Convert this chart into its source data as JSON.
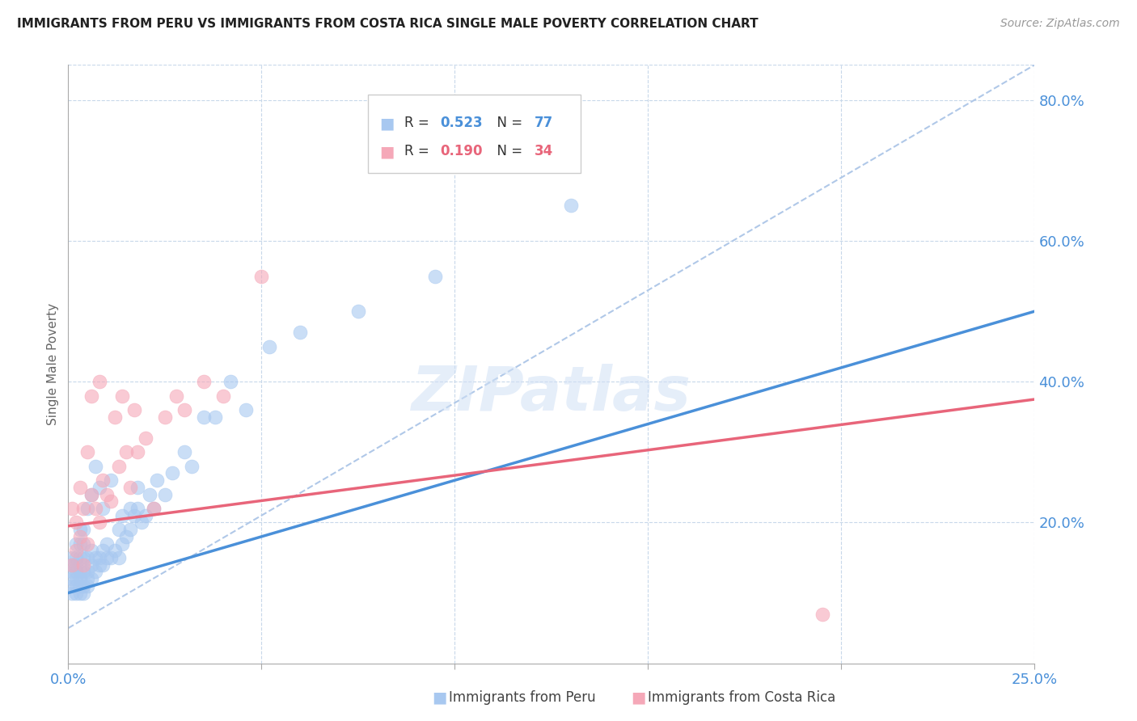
{
  "title": "IMMIGRANTS FROM PERU VS IMMIGRANTS FROM COSTA RICA SINGLE MALE POVERTY CORRELATION CHART",
  "source": "Source: ZipAtlas.com",
  "ylabel": "Single Male Poverty",
  "xlim": [
    0.0,
    0.25
  ],
  "ylim": [
    0.0,
    0.85
  ],
  "right_yticks": [
    0.2,
    0.4,
    0.6,
    0.8
  ],
  "right_yticklabels": [
    "20.0%",
    "40.0%",
    "60.0%",
    "80.0%"
  ],
  "xticks": [
    0.0,
    0.05,
    0.1,
    0.15,
    0.2,
    0.25
  ],
  "R_peru": 0.523,
  "N_peru": 77,
  "R_costarica": 0.19,
  "N_costarica": 34,
  "peru_scatter_color": "#a8c8f0",
  "costarica_scatter_color": "#f5a8b8",
  "peru_line_color": "#4a90d9",
  "costarica_line_color": "#e8657a",
  "reference_line_color": "#b0c8e8",
  "watermark": "ZIPatlas",
  "peru_line_x0": 0.0,
  "peru_line_y0": 0.1,
  "peru_line_x1": 0.25,
  "peru_line_y1": 0.5,
  "cr_line_x0": 0.0,
  "cr_line_y0": 0.195,
  "cr_line_x1": 0.25,
  "cr_line_y1": 0.375,
  "ref_line_x0": 0.0,
  "ref_line_y0": 0.05,
  "ref_line_x1": 0.25,
  "ref_line_y1": 0.85,
  "peru_x": [
    0.001,
    0.001,
    0.001,
    0.001,
    0.001,
    0.001,
    0.002,
    0.002,
    0.002,
    0.002,
    0.002,
    0.002,
    0.002,
    0.003,
    0.003,
    0.003,
    0.003,
    0.003,
    0.003,
    0.003,
    0.004,
    0.004,
    0.004,
    0.004,
    0.004,
    0.004,
    0.005,
    0.005,
    0.005,
    0.005,
    0.005,
    0.006,
    0.006,
    0.006,
    0.006,
    0.007,
    0.007,
    0.007,
    0.008,
    0.008,
    0.008,
    0.009,
    0.009,
    0.009,
    0.01,
    0.01,
    0.011,
    0.011,
    0.012,
    0.013,
    0.013,
    0.014,
    0.014,
    0.015,
    0.016,
    0.016,
    0.017,
    0.018,
    0.018,
    0.019,
    0.02,
    0.021,
    0.022,
    0.023,
    0.025,
    0.027,
    0.03,
    0.032,
    0.035,
    0.038,
    0.042,
    0.046,
    0.052,
    0.06,
    0.075,
    0.095,
    0.13
  ],
  "peru_y": [
    0.1,
    0.11,
    0.12,
    0.13,
    0.14,
    0.15,
    0.1,
    0.11,
    0.12,
    0.13,
    0.14,
    0.15,
    0.17,
    0.1,
    0.11,
    0.12,
    0.13,
    0.15,
    0.17,
    0.19,
    0.1,
    0.11,
    0.13,
    0.15,
    0.17,
    0.19,
    0.11,
    0.12,
    0.13,
    0.15,
    0.22,
    0.12,
    0.14,
    0.16,
    0.24,
    0.13,
    0.15,
    0.28,
    0.14,
    0.15,
    0.25,
    0.14,
    0.16,
    0.22,
    0.15,
    0.17,
    0.15,
    0.26,
    0.16,
    0.15,
    0.19,
    0.17,
    0.21,
    0.18,
    0.19,
    0.22,
    0.21,
    0.22,
    0.25,
    0.2,
    0.21,
    0.24,
    0.22,
    0.26,
    0.24,
    0.27,
    0.3,
    0.28,
    0.35,
    0.35,
    0.4,
    0.36,
    0.45,
    0.47,
    0.5,
    0.55,
    0.65
  ],
  "costarica_x": [
    0.001,
    0.001,
    0.002,
    0.002,
    0.003,
    0.003,
    0.004,
    0.004,
    0.005,
    0.005,
    0.006,
    0.006,
    0.007,
    0.008,
    0.008,
    0.009,
    0.01,
    0.011,
    0.012,
    0.013,
    0.014,
    0.015,
    0.016,
    0.017,
    0.018,
    0.02,
    0.022,
    0.025,
    0.028,
    0.03,
    0.035,
    0.04,
    0.05,
    0.195
  ],
  "costarica_y": [
    0.14,
    0.22,
    0.16,
    0.2,
    0.18,
    0.25,
    0.14,
    0.22,
    0.17,
    0.3,
    0.24,
    0.38,
    0.22,
    0.2,
    0.4,
    0.26,
    0.24,
    0.23,
    0.35,
    0.28,
    0.38,
    0.3,
    0.25,
    0.36,
    0.3,
    0.32,
    0.22,
    0.35,
    0.38,
    0.36,
    0.4,
    0.38,
    0.55,
    0.07
  ]
}
